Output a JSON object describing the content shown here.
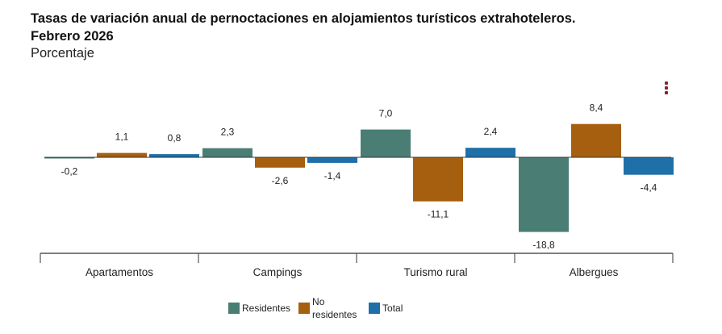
{
  "title": "Tasas de variación anual de pernoctaciones en alojamientos turísticos extrahoteleros.",
  "subtitle": "Febrero 2026",
  "unit": "Porcentaje",
  "menu_icon": "vertical-ellipsis-icon",
  "chart_data": {
    "type": "bar",
    "categories": [
      "Apartamentos",
      "Campings",
      "Turismo rural",
      "Albergues"
    ],
    "series": [
      {
        "name": "Residentes",
        "values": [
          -0.2,
          2.3,
          7.0,
          -18.8
        ],
        "color": "#4a7d74"
      },
      {
        "name": "No residentes",
        "values": [
          1.1,
          -2.6,
          -11.1,
          8.4
        ],
        "color": "#a65f0f"
      },
      {
        "name": "Total",
        "values": [
          0.8,
          -1.4,
          2.4,
          -4.4
        ],
        "color": "#1f6fa8"
      }
    ],
    "data_labels": true,
    "grid": false,
    "legend_position": "bottom",
    "decimal_separator": ","
  },
  "legend": [
    {
      "label": "Residentes",
      "color": "#4a7d74"
    },
    {
      "label": "No",
      "label2": "residentes",
      "color": "#a65f0f"
    },
    {
      "label": "Total",
      "color": "#1f6fa8"
    }
  ]
}
